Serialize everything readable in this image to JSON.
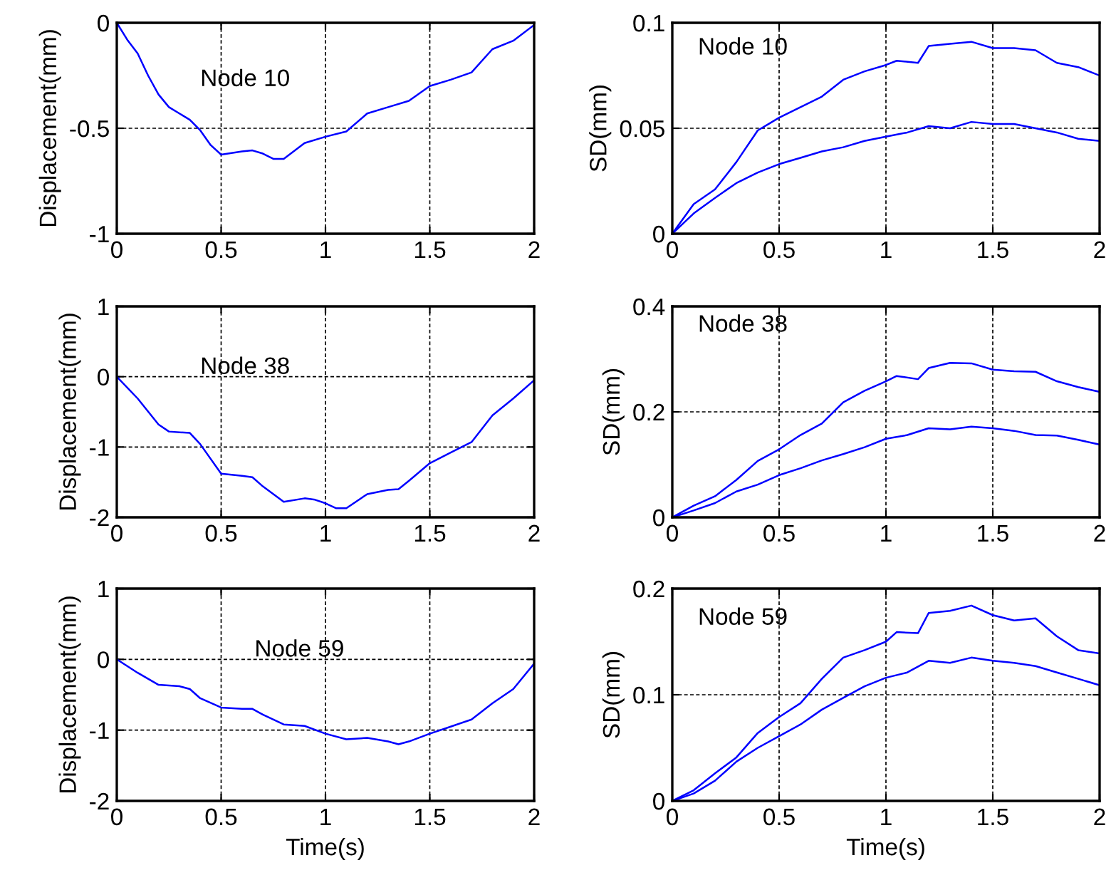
{
  "chart_data": [
    {
      "type": "line",
      "ylabel": "Displacement(mm)",
      "annotations": [
        "Node 10"
      ],
      "xlim": [
        0,
        2
      ],
      "xticks": [
        0,
        0.5,
        1,
        1.5,
        2
      ],
      "ylim": [
        -1,
        0
      ],
      "yticks": [
        -1,
        -0.5,
        0
      ],
      "grid": true,
      "line_style": "solid",
      "marker": "none",
      "series": [
        {
          "color": "#0000ff",
          "x": [
            0,
            0.05,
            0.1,
            0.15,
            0.2,
            0.25,
            0.3,
            0.35,
            0.4,
            0.45,
            0.5,
            0.6,
            0.65,
            0.7,
            0.75,
            0.8,
            0.9,
            1.0,
            1.1,
            1.2,
            1.3,
            1.4,
            1.5,
            1.6,
            1.7,
            1.8,
            1.9,
            2.0
          ],
          "values": [
            0,
            -0.08,
            -0.145,
            -0.25,
            -0.34,
            -0.4,
            -0.43,
            -0.46,
            -0.51,
            -0.58,
            -0.625,
            -0.61,
            -0.605,
            -0.62,
            -0.645,
            -0.645,
            -0.57,
            -0.54,
            -0.515,
            -0.43,
            -0.4,
            -0.37,
            -0.3,
            -0.27,
            -0.235,
            -0.125,
            -0.085,
            -0.01
          ]
        }
      ]
    },
    {
      "type": "line",
      "ylabel": "SD(mm)",
      "annotations": [
        "Node 10"
      ],
      "xlim": [
        0,
        2
      ],
      "xticks": [
        0,
        0.5,
        1,
        1.5,
        2
      ],
      "ylim": [
        0,
        0.1
      ],
      "yticks": [
        0,
        0.05,
        0.1
      ],
      "grid": true,
      "line_style": "solid",
      "marker": "none",
      "series": [
        {
          "color": "#0000ff",
          "x": [
            0,
            0.1,
            0.2,
            0.3,
            0.4,
            0.45,
            0.5,
            0.6,
            0.7,
            0.8,
            0.9,
            1.0,
            1.05,
            1.15,
            1.2,
            1.3,
            1.4,
            1.5,
            1.6,
            1.7,
            1.8,
            1.9,
            2.0
          ],
          "values": [
            0,
            0.014,
            0.021,
            0.034,
            0.049,
            0.052,
            0.055,
            0.06,
            0.065,
            0.073,
            0.077,
            0.08,
            0.082,
            0.081,
            0.089,
            0.09,
            0.091,
            0.088,
            0.088,
            0.087,
            0.081,
            0.079,
            0.075
          ]
        },
        {
          "color": "#0000ff",
          "x": [
            0,
            0.1,
            0.2,
            0.3,
            0.4,
            0.5,
            0.6,
            0.7,
            0.8,
            0.9,
            1.0,
            1.1,
            1.2,
            1.3,
            1.4,
            1.5,
            1.6,
            1.7,
            1.8,
            1.9,
            2.0
          ],
          "values": [
            0,
            0.0096,
            0.017,
            0.024,
            0.029,
            0.033,
            0.036,
            0.039,
            0.041,
            0.044,
            0.046,
            0.048,
            0.051,
            0.05,
            0.053,
            0.052,
            0.052,
            0.05,
            0.048,
            0.045,
            0.044
          ]
        }
      ]
    },
    {
      "type": "line",
      "ylabel": "Displacement(mm)",
      "annotations": [
        "Node 38"
      ],
      "xlim": [
        0,
        2
      ],
      "xticks": [
        0,
        0.5,
        1,
        1.5,
        2
      ],
      "ylim": [
        -2,
        1
      ],
      "yticks": [
        -2,
        -1,
        0,
        1
      ],
      "grid": true,
      "line_style": "solid",
      "marker": "none",
      "series": [
        {
          "color": "#0000ff",
          "x": [
            0,
            0.1,
            0.2,
            0.25,
            0.35,
            0.4,
            0.5,
            0.6,
            0.65,
            0.7,
            0.8,
            0.9,
            0.95,
            1.0,
            1.05,
            1.1,
            1.2,
            1.3,
            1.35,
            1.4,
            1.5,
            1.6,
            1.7,
            1.8,
            1.9,
            2.0
          ],
          "values": [
            0,
            -0.31,
            -0.68,
            -0.78,
            -0.8,
            -0.96,
            -1.38,
            -1.41,
            -1.43,
            -1.56,
            -1.78,
            -1.73,
            -1.75,
            -1.8,
            -1.87,
            -1.87,
            -1.67,
            -1.61,
            -1.6,
            -1.48,
            -1.23,
            -1.08,
            -0.93,
            -0.55,
            -0.31,
            -0.05
          ]
        }
      ]
    },
    {
      "type": "line",
      "ylabel": "SD(mm)",
      "annotations": [
        "Node 38"
      ],
      "xlim": [
        0,
        2
      ],
      "xticks": [
        0,
        0.5,
        1,
        1.5,
        2
      ],
      "ylim": [
        0,
        0.4
      ],
      "yticks": [
        0,
        0.2,
        0.4
      ],
      "grid": true,
      "line_style": "solid",
      "marker": "none",
      "series": [
        {
          "color": "#0000ff",
          "x": [
            0,
            0.1,
            0.2,
            0.3,
            0.4,
            0.5,
            0.6,
            0.7,
            0.8,
            0.9,
            1.0,
            1.05,
            1.15,
            1.2,
            1.3,
            1.4,
            1.5,
            1.6,
            1.7,
            1.8,
            1.9,
            2.0
          ],
          "values": [
            0,
            0.022,
            0.04,
            0.071,
            0.107,
            0.129,
            0.156,
            0.178,
            0.218,
            0.24,
            0.258,
            0.268,
            0.262,
            0.283,
            0.293,
            0.292,
            0.28,
            0.277,
            0.276,
            0.258,
            0.247,
            0.238
          ]
        },
        {
          "color": "#0000ff",
          "x": [
            0,
            0.1,
            0.2,
            0.3,
            0.4,
            0.5,
            0.6,
            0.7,
            0.8,
            0.9,
            1.0,
            1.1,
            1.2,
            1.3,
            1.4,
            1.5,
            1.6,
            1.7,
            1.8,
            1.9,
            2.0
          ],
          "values": [
            0,
            0.013,
            0.027,
            0.049,
            0.062,
            0.08,
            0.093,
            0.108,
            0.12,
            0.133,
            0.149,
            0.156,
            0.169,
            0.167,
            0.172,
            0.169,
            0.164,
            0.156,
            0.155,
            0.147,
            0.138
          ]
        }
      ]
    },
    {
      "type": "line",
      "xlabel": "Time(s)",
      "ylabel": "Displacement(mm)",
      "annotations": [
        "Node 59"
      ],
      "xlim": [
        0,
        2
      ],
      "xticks": [
        0,
        0.5,
        1,
        1.5,
        2
      ],
      "ylim": [
        -2,
        1
      ],
      "yticks": [
        -2,
        -1,
        0,
        1
      ],
      "grid": true,
      "line_style": "solid",
      "marker": "none",
      "series": [
        {
          "color": "#0000ff",
          "x": [
            0,
            0.1,
            0.2,
            0.3,
            0.35,
            0.4,
            0.5,
            0.6,
            0.65,
            0.7,
            0.8,
            0.9,
            1.0,
            1.1,
            1.2,
            1.3,
            1.35,
            1.4,
            1.5,
            1.6,
            1.7,
            1.8,
            1.9,
            2.0
          ],
          "values": [
            0,
            -0.19,
            -0.36,
            -0.38,
            -0.42,
            -0.55,
            -0.68,
            -0.7,
            -0.7,
            -0.78,
            -0.92,
            -0.94,
            -1.05,
            -1.13,
            -1.11,
            -1.16,
            -1.2,
            -1.16,
            -1.05,
            -0.95,
            -0.85,
            -0.62,
            -0.42,
            -0.06
          ]
        }
      ]
    },
    {
      "type": "line",
      "xlabel": "Time(s)",
      "ylabel": "SD(mm)",
      "annotations": [
        "Node 59"
      ],
      "xlim": [
        0,
        2
      ],
      "xticks": [
        0,
        0.5,
        1,
        1.5,
        2
      ],
      "ylim": [
        0,
        0.2
      ],
      "yticks": [
        0,
        0.1,
        0.2
      ],
      "grid": true,
      "line_style": "solid",
      "marker": "none",
      "series": [
        {
          "color": "#0000ff",
          "x": [
            0,
            0.1,
            0.2,
            0.3,
            0.4,
            0.5,
            0.6,
            0.7,
            0.8,
            0.9,
            1.0,
            1.05,
            1.15,
            1.2,
            1.3,
            1.4,
            1.5,
            1.6,
            1.7,
            1.8,
            1.9,
            2.0
          ],
          "values": [
            0,
            0.01,
            0.026,
            0.041,
            0.064,
            0.079,
            0.092,
            0.115,
            0.135,
            0.142,
            0.15,
            0.159,
            0.158,
            0.177,
            0.179,
            0.184,
            0.175,
            0.17,
            0.172,
            0.155,
            0.142,
            0.139
          ]
        },
        {
          "color": "#0000ff",
          "x": [
            0,
            0.1,
            0.2,
            0.3,
            0.4,
            0.5,
            0.6,
            0.7,
            0.8,
            0.9,
            1.0,
            1.1,
            1.2,
            1.3,
            1.4,
            1.5,
            1.6,
            1.7,
            1.8,
            1.9,
            2.0
          ],
          "values": [
            0,
            0.007,
            0.019,
            0.037,
            0.05,
            0.061,
            0.072,
            0.086,
            0.097,
            0.108,
            0.116,
            0.121,
            0.132,
            0.13,
            0.135,
            0.132,
            0.13,
            0.127,
            0.121,
            0.115,
            0.109
          ]
        }
      ]
    }
  ]
}
